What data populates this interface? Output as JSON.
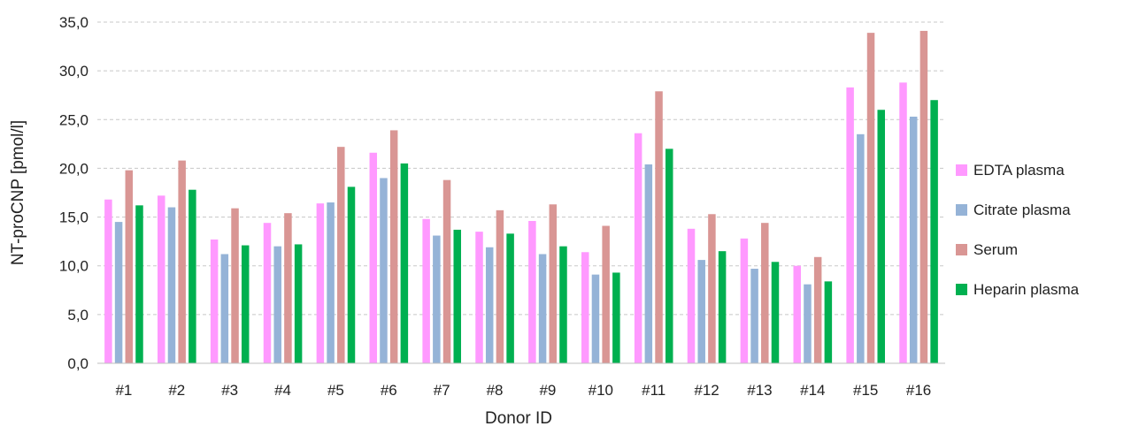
{
  "chart_data": {
    "type": "bar",
    "title": "",
    "xlabel": "Donor ID",
    "ylabel": "NT-proCNP [pmol/l]",
    "ylim": [
      0,
      35
    ],
    "yticks": [
      "0,0",
      "5,0",
      "10,0",
      "15,0",
      "20,0",
      "25,0",
      "30,0",
      "35,0"
    ],
    "grid": true,
    "legend_position": "right",
    "categories": [
      "#1",
      "#2",
      "#3",
      "#4",
      "#5",
      "#6",
      "#7",
      "#8",
      "#9",
      "#10",
      "#11",
      "#12",
      "#13",
      "#14",
      "#15",
      "#16"
    ],
    "series": [
      {
        "name": "EDTA plasma",
        "color": "#ff99ff",
        "values": [
          16.8,
          17.2,
          12.7,
          14.4,
          16.4,
          21.6,
          14.8,
          13.5,
          14.6,
          11.4,
          23.6,
          13.8,
          12.8,
          10.0,
          28.3,
          28.8
        ]
      },
      {
        "name": "Citrate plasma",
        "color": "#95b3d7",
        "values": [
          14.5,
          16.0,
          11.2,
          12.0,
          16.5,
          19.0,
          13.1,
          11.9,
          11.2,
          9.1,
          20.4,
          10.6,
          9.7,
          8.1,
          23.5,
          25.3
        ]
      },
      {
        "name": "Serum",
        "color": "#d99694",
        "values": [
          19.8,
          20.8,
          15.9,
          15.4,
          22.2,
          23.9,
          18.8,
          15.7,
          16.3,
          14.1,
          27.9,
          15.3,
          14.4,
          10.9,
          33.9,
          34.1
        ]
      },
      {
        "name": "Heparin plasma",
        "color": "#00b050",
        "values": [
          16.2,
          17.8,
          12.1,
          12.2,
          18.1,
          20.5,
          13.7,
          13.3,
          12.0,
          9.3,
          22.0,
          11.5,
          10.4,
          8.4,
          26.0,
          27.0
        ]
      }
    ]
  }
}
